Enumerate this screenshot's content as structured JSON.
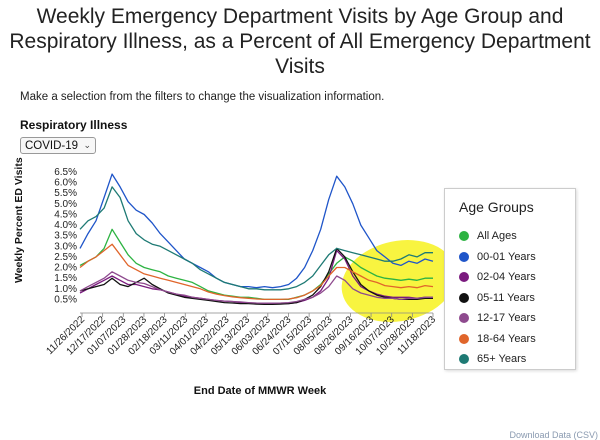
{
  "title_lines": [
    "Weekly Emergency Department Visits by Age Group and",
    "Respiratory Illness, as a Percent of All Emergency Department",
    "Visits"
  ],
  "instructions": "Make a selection from the filters to change the visualization information.",
  "filter": {
    "label": "Respiratory Illness",
    "selected": "COVID-19"
  },
  "legend_title": "Age Groups",
  "footer_text": "Download Data (CSV)",
  "highlight_color": "#f5f000",
  "chart_data": {
    "type": "line",
    "xlabel": "End Date of MMWR Week",
    "ylabel": "Weekly Percent ED Visits",
    "ylim": [
      0,
      6.5
    ],
    "y_ticks": [
      "0.5%",
      "1.0%",
      "1.5%",
      "2.0%",
      "2.5%",
      "3.0%",
      "3.5%",
      "4.0%",
      "4.5%",
      "5.0%",
      "5.5%",
      "6.0%",
      "6.5%"
    ],
    "x_ticks": [
      "11/26/2022",
      "12/17/2022",
      "01/07/2023",
      "01/28/2023",
      "02/18/2023",
      "03/11/2023",
      "04/01/2023",
      "04/22/2023",
      "05/13/2023",
      "06/03/2023",
      "06/24/2023",
      "07/15/2023",
      "08/05/2023",
      "08/26/2023",
      "09/16/2023",
      "10/07/2023",
      "10/28/2023",
      "11/18/2023"
    ],
    "series": [
      {
        "name": "All Ages",
        "color": "#2db342",
        "values": [
          2.1,
          2.3,
          2.5,
          2.9,
          3.8,
          3.2,
          2.6,
          2.2,
          2.0,
          1.9,
          1.8,
          1.6,
          1.5,
          1.4,
          1.3,
          1.1,
          0.9,
          0.8,
          0.7,
          0.65,
          0.6,
          0.6,
          0.55,
          0.5,
          0.5,
          0.5,
          0.5,
          0.6,
          0.7,
          0.9,
          1.2,
          1.7,
          2.2,
          2.5,
          2.3,
          2.0,
          1.8,
          1.6,
          1.5,
          1.45,
          1.4,
          1.45,
          1.4,
          1.5,
          1.5
        ]
      },
      {
        "name": "00-01 Years",
        "color": "#1f55c9",
        "values": [
          2.9,
          3.6,
          4.2,
          5.3,
          6.4,
          5.8,
          5.1,
          4.7,
          4.5,
          4.1,
          3.6,
          3.2,
          2.8,
          2.4,
          2.2,
          2.0,
          1.8,
          1.5,
          1.3,
          1.2,
          1.1,
          1.1,
          1.05,
          1.1,
          1.05,
          1.1,
          1.2,
          1.5,
          2.0,
          2.8,
          3.8,
          5.2,
          6.3,
          5.8,
          5.0,
          4.0,
          3.4,
          2.8,
          2.5,
          2.2,
          2.1,
          2.3,
          2.2,
          2.4,
          2.3
        ]
      },
      {
        "name": "02-04 Years",
        "color": "#7a1a7e",
        "values": [
          0.8,
          1.0,
          1.2,
          1.4,
          1.6,
          1.4,
          1.2,
          1.2,
          1.1,
          1.0,
          0.95,
          0.85,
          0.75,
          0.65,
          0.6,
          0.55,
          0.5,
          0.45,
          0.42,
          0.4,
          0.35,
          0.35,
          0.3,
          0.3,
          0.3,
          0.3,
          0.3,
          0.35,
          0.45,
          0.6,
          0.9,
          1.5,
          2.8,
          2.4,
          1.6,
          1.1,
          0.9,
          0.75,
          0.65,
          0.6,
          0.6,
          0.6,
          0.55,
          0.6,
          0.6
        ]
      },
      {
        "name": "05-11 Years",
        "color": "#111111",
        "values": [
          0.9,
          1.0,
          1.1,
          1.2,
          1.5,
          1.2,
          1.1,
          1.3,
          1.5,
          1.2,
          1.0,
          0.8,
          0.7,
          0.6,
          0.55,
          0.5,
          0.45,
          0.4,
          0.35,
          0.33,
          0.3,
          0.3,
          0.28,
          0.27,
          0.27,
          0.28,
          0.3,
          0.35,
          0.5,
          0.7,
          1.1,
          1.8,
          2.9,
          2.5,
          1.8,
          1.2,
          0.9,
          0.7,
          0.6,
          0.55,
          0.5,
          0.5,
          0.5,
          0.55,
          0.55
        ]
      },
      {
        "name": "12-17 Years",
        "color": "#8e4a8e",
        "values": [
          0.9,
          1.1,
          1.3,
          1.5,
          1.8,
          1.6,
          1.4,
          1.3,
          1.25,
          1.1,
          0.95,
          0.85,
          0.75,
          0.7,
          0.6,
          0.55,
          0.5,
          0.45,
          0.42,
          0.4,
          0.38,
          0.35,
          0.33,
          0.32,
          0.32,
          0.33,
          0.35,
          0.4,
          0.5,
          0.6,
          0.8,
          1.1,
          1.6,
          1.4,
          1.0,
          0.8,
          0.7,
          0.6,
          0.55,
          0.55,
          0.5,
          0.55,
          0.55,
          0.6,
          0.6
        ]
      },
      {
        "name": "18-64 Years",
        "color": "#e0652b",
        "values": [
          2.0,
          2.3,
          2.5,
          2.8,
          3.1,
          2.6,
          2.1,
          1.9,
          1.7,
          1.6,
          1.5,
          1.4,
          1.3,
          1.2,
          1.1,
          1.0,
          0.85,
          0.75,
          0.68,
          0.62,
          0.58,
          0.55,
          0.52,
          0.5,
          0.5,
          0.5,
          0.52,
          0.58,
          0.7,
          0.9,
          1.15,
          1.6,
          2.0,
          2.0,
          1.8,
          1.6,
          1.4,
          1.3,
          1.15,
          1.1,
          1.05,
          1.1,
          1.05,
          1.15,
          1.1
        ]
      },
      {
        "name": "65+ Years",
        "color": "#1e7a74",
        "values": [
          3.8,
          4.2,
          4.4,
          4.8,
          5.8,
          5.3,
          4.2,
          3.6,
          3.3,
          3.1,
          3.0,
          2.8,
          2.6,
          2.4,
          2.2,
          1.9,
          1.7,
          1.5,
          1.3,
          1.2,
          1.1,
          1.0,
          1.0,
          0.95,
          0.95,
          0.95,
          1.0,
          1.1,
          1.3,
          1.6,
          2.1,
          2.6,
          2.9,
          2.8,
          2.7,
          2.6,
          2.5,
          2.4,
          2.3,
          2.3,
          2.4,
          2.6,
          2.5,
          2.7,
          2.7
        ]
      }
    ]
  }
}
